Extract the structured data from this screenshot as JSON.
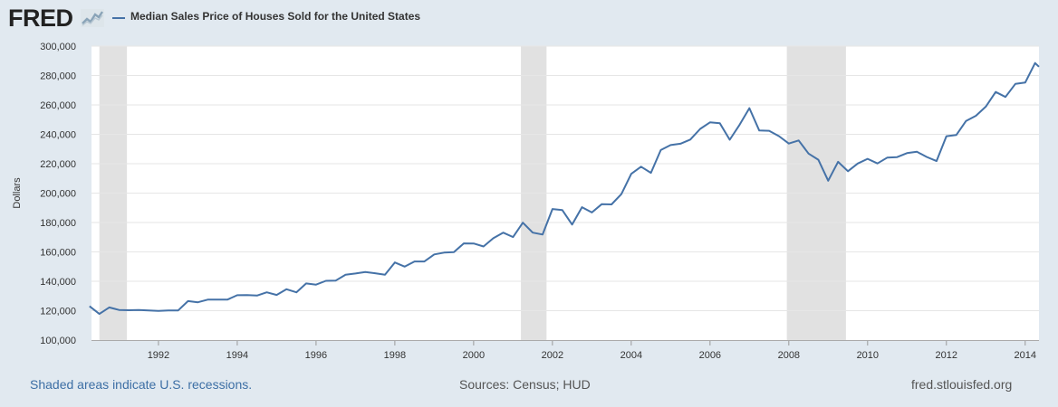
{
  "header": {
    "logo_text": "FRED",
    "logo_icon": "chart-line-icon",
    "legend_label": "Median Sales Price of Houses Sold for the United States"
  },
  "colors": {
    "series": "#4572a7",
    "recession": "#e1e1e1",
    "background": "#e1e9f0",
    "plot": "#ffffff",
    "grid": "#e6e6e6"
  },
  "chart_data": {
    "type": "line",
    "title": "",
    "xlabel": "",
    "ylabel": "Dollars",
    "xlim": [
      1990.3,
      2014.35
    ],
    "ylim": [
      100000,
      300000
    ],
    "yticks": [
      100000,
      120000,
      140000,
      160000,
      180000,
      200000,
      220000,
      240000,
      260000,
      280000,
      300000
    ],
    "ytick_labels": [
      "100,000",
      "120,000",
      "140,000",
      "160,000",
      "180,000",
      "200,000",
      "220,000",
      "240,000",
      "260,000",
      "280,000",
      "300,000"
    ],
    "xticks": [
      1992,
      1994,
      1996,
      1998,
      2000,
      2002,
      2004,
      2006,
      2008,
      2010,
      2012,
      2014
    ],
    "xtick_labels": [
      "1992",
      "1994",
      "1996",
      "1998",
      "2000",
      "2002",
      "2004",
      "2006",
      "2008",
      "2010",
      "2012",
      "2014"
    ],
    "grid": true,
    "legend_position": "top-left",
    "recessions": [
      [
        1990.5,
        1991.2
      ],
      [
        2001.2,
        2001.85
      ],
      [
        2007.95,
        2009.45
      ]
    ],
    "series": [
      {
        "name": "Median Sales Price of Houses Sold for the United States",
        "x": [
          1990.25,
          1990.5,
          1990.75,
          1991,
          1991.25,
          1991.5,
          1991.75,
          1992,
          1992.25,
          1992.5,
          1992.75,
          1993,
          1993.25,
          1993.5,
          1993.75,
          1994,
          1994.25,
          1994.5,
          1994.75,
          1995,
          1995.25,
          1995.5,
          1995.75,
          1996,
          1996.25,
          1996.5,
          1996.75,
          1997,
          1997.25,
          1997.5,
          1997.75,
          1998,
          1998.25,
          1998.5,
          1998.75,
          1999,
          1999.25,
          1999.5,
          1999.75,
          2000,
          2000.25,
          2000.5,
          2000.75,
          2001,
          2001.25,
          2001.5,
          2001.75,
          2002,
          2002.25,
          2002.5,
          2002.75,
          2003,
          2003.25,
          2003.5,
          2003.75,
          2004,
          2004.25,
          2004.5,
          2004.75,
          2005,
          2005.25,
          2005.5,
          2005.75,
          2006,
          2006.25,
          2006.5,
          2006.75,
          2007,
          2007.25,
          2007.5,
          2007.75,
          2008,
          2008.25,
          2008.5,
          2008.75,
          2009,
          2009.25,
          2009.5,
          2009.75,
          2010,
          2010.25,
          2010.5,
          2010.75,
          2011,
          2011.25,
          2011.5,
          2011.75,
          2012,
          2012.25,
          2012.5,
          2012.75,
          2013,
          2013.25,
          2013.5,
          2013.75,
          2014,
          2014.25,
          2014.35
        ],
        "values": [
          123000,
          117800,
          122200,
          120500,
          120300,
          120500,
          120200,
          119900,
          120100,
          120200,
          126500,
          125700,
          127500,
          127500,
          127500,
          130500,
          130600,
          130300,
          132500,
          130700,
          134600,
          132500,
          138500,
          137700,
          140300,
          140500,
          144500,
          145300,
          146300,
          145500,
          144500,
          152800,
          150000,
          153500,
          153500,
          158300,
          159500,
          159800,
          165800,
          165700,
          163700,
          169300,
          173100,
          170100,
          179900,
          173100,
          171800,
          189200,
          188500,
          178600,
          190400,
          186800,
          192400,
          192300,
          199300,
          213100,
          218000,
          213800,
          229300,
          232700,
          233600,
          236400,
          243700,
          248100,
          247500,
          236300,
          246500,
          257800,
          242600,
          242400,
          238800,
          233700,
          235800,
          226900,
          222700,
          208400,
          221300,
          214900,
          220100,
          223300,
          220200,
          224200,
          224500,
          227200,
          228100,
          224600,
          221800,
          238700,
          239500,
          249100,
          252600,
          258800,
          268800,
          265400,
          274300,
          275200,
          288500,
          286000
        ]
      }
    ]
  },
  "footer": {
    "note": "Shaded areas indicate U.S. recessions.",
    "sources": "Sources: Census; HUD",
    "site": "fred.stlouisfed.org"
  }
}
